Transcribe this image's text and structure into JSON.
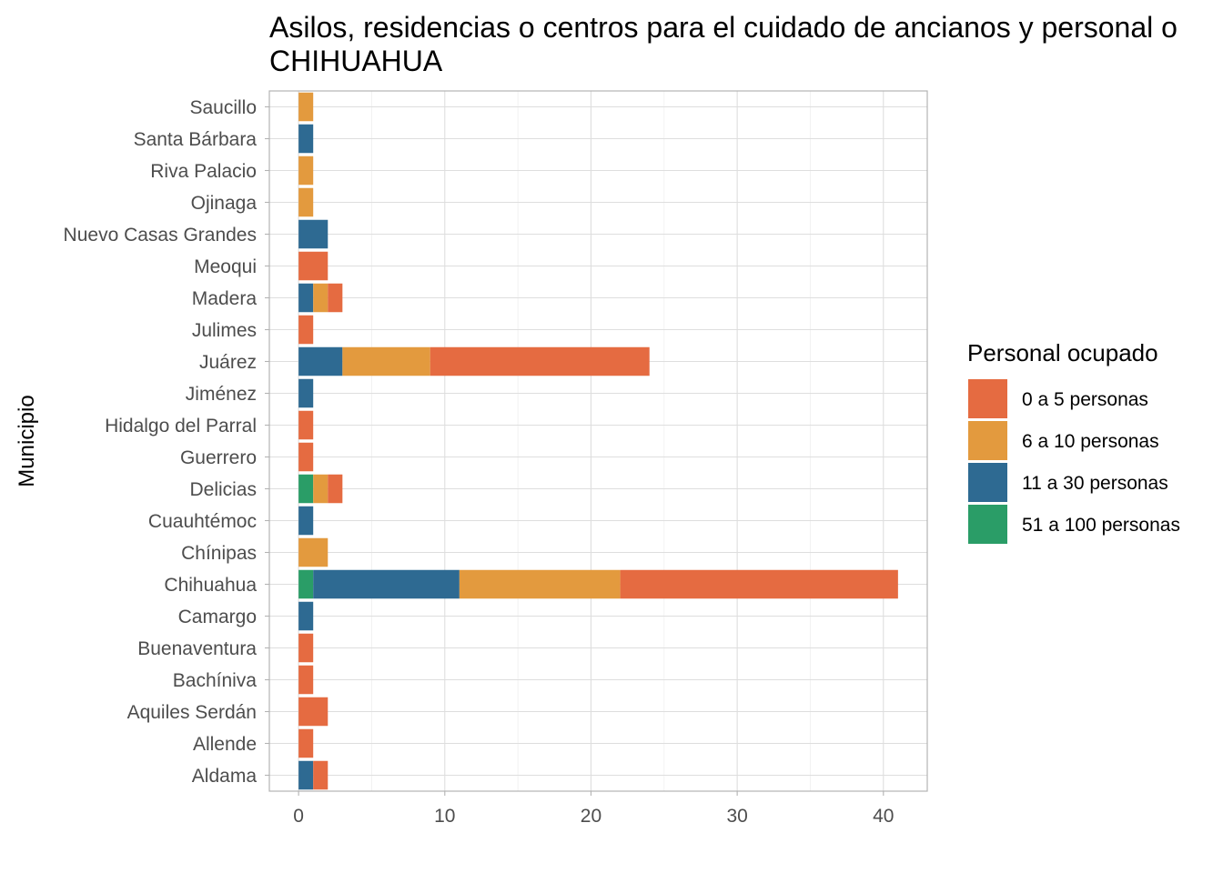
{
  "chart_data": {
    "type": "bar",
    "orientation": "horizontal",
    "stacked": true,
    "title": "Asilos, residencias o centros para el cuidado de ancianos y personal o",
    "subtitle": "CHIHUAHUA",
    "xlabel": "",
    "ylabel": "Municipio",
    "xlim": [
      -2,
      43
    ],
    "xticks": [
      0,
      10,
      20,
      30,
      40
    ],
    "grid": true,
    "legend": {
      "title": "Personal ocupado",
      "position": "right"
    },
    "categories": [
      "Saucillo",
      "Santa Bárbara",
      "Riva Palacio",
      "Ojinaga",
      "Nuevo Casas Grandes",
      "Meoqui",
      "Madera",
      "Julimes",
      "Juárez",
      "Jiménez",
      "Hidalgo del Parral",
      "Guerrero",
      "Delicias",
      "Cuauhtémoc",
      "Chínipas",
      "Chihuahua",
      "Camargo",
      "Buenaventura",
      "Bachíniva",
      "Aquiles Serdán",
      "Allende",
      "Aldama"
    ],
    "series": [
      {
        "name": "51 a 100 personas",
        "color": "#2a9d67",
        "values": [
          0,
          0,
          0,
          0,
          0,
          0,
          0,
          0,
          0,
          0,
          0,
          0,
          1,
          0,
          0,
          1,
          0,
          0,
          0,
          0,
          0,
          0
        ]
      },
      {
        "name": "11 a 30 personas",
        "color": "#2e6a92",
        "values": [
          0,
          1,
          0,
          0,
          2,
          0,
          1,
          0,
          3,
          1,
          0,
          0,
          0,
          1,
          0,
          10,
          1,
          0,
          0,
          0,
          0,
          1
        ]
      },
      {
        "name": "6 a 10 personas",
        "color": "#e39a3e",
        "values": [
          1,
          0,
          1,
          1,
          0,
          0,
          1,
          0,
          6,
          0,
          0,
          0,
          1,
          0,
          2,
          11,
          0,
          0,
          0,
          0,
          0,
          0
        ]
      },
      {
        "name": "0 a 5 personas",
        "color": "#e56b41",
        "values": [
          0,
          0,
          0,
          0,
          0,
          2,
          1,
          1,
          15,
          0,
          1,
          1,
          1,
          0,
          0,
          19,
          0,
          1,
          1,
          2,
          1,
          1
        ]
      }
    ],
    "legend_order": [
      "0 a 5 personas",
      "6 a 10 personas",
      "11 a 30 personas",
      "51 a 100 personas"
    ]
  }
}
